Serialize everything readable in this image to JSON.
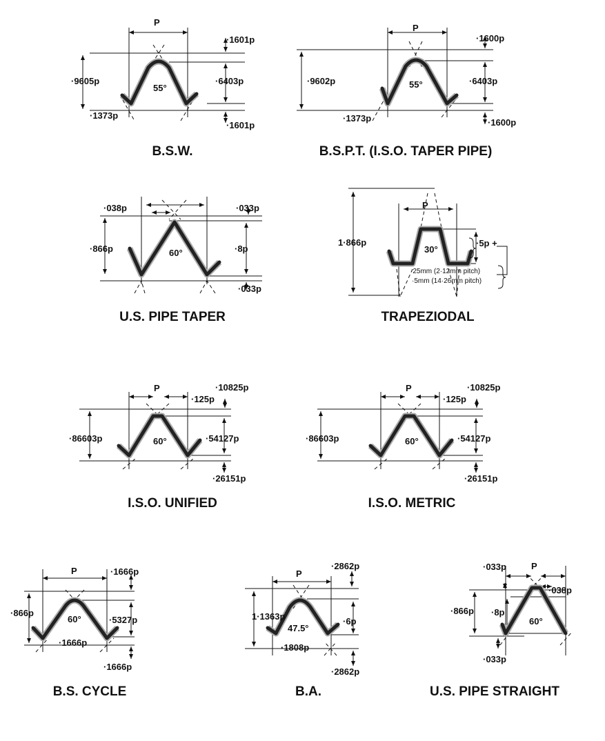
{
  "diagrams": [
    {
      "title": "B.S.W.",
      "labels": [
        "P",
        "·1601p",
        "·9605p",
        "·6403p",
        "55°",
        "·1373p",
        "·1601p"
      ]
    },
    {
      "title": "B.S.P.T. (I.S.O. TAPER PIPE)",
      "labels": [
        "P",
        "·1600p",
        "·9602p",
        "·6403p",
        "55°",
        "·1373p",
        "·1600p"
      ]
    },
    {
      "title": "U.S. PIPE TAPER",
      "labels": [
        "·038p",
        "·033p",
        "·866p",
        "·8p",
        "60°",
        "·033p"
      ]
    },
    {
      "title": "TRAPEZIODAL",
      "labels": [
        "P",
        "1·866p",
        "30°",
        "·5p +",
        "·25mm (2·12mm pitch)",
        "·5mm (14·26mm pitch)"
      ]
    },
    {
      "title": "I.S.O. UNIFIED",
      "labels": [
        "P",
        "·10825p",
        "·125p",
        "·86603p",
        "·54127p",
        "60°",
        "·26151p"
      ]
    },
    {
      "title": "I.S.O. METRIC",
      "labels": [
        "P",
        "·10825p",
        "·125p",
        "·86603p",
        "·54127p",
        "60°",
        "·26151p"
      ]
    },
    {
      "title": "B.S. CYCLE",
      "labels": [
        "P",
        "·1666p",
        "·866p",
        "·5327p",
        "60°",
        "·1666p",
        "·1666p"
      ]
    },
    {
      "title": "B.A.",
      "labels": [
        "P",
        "·2862p",
        "1·1363p",
        "·6p",
        "47.5°",
        "·1808p",
        "·2862p"
      ]
    },
    {
      "title": "U.S. PIPE STRAIGHT",
      "labels": [
        "P",
        "·033p",
        "·038p",
        "·866p",
        "·8p",
        "60°",
        "·033p"
      ]
    }
  ]
}
